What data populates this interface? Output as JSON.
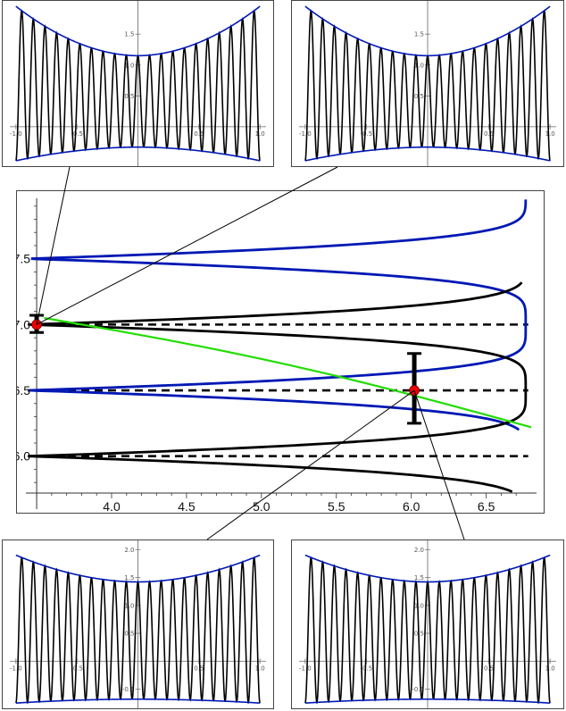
{
  "chart_data": [
    {
      "id": "main",
      "type": "line",
      "x_ticks": [
        "4.0",
        "4.5",
        "5.0",
        "5.5",
        "6.0",
        "6.5"
      ],
      "y_ticks": [
        "6.0",
        "6.5",
        "7.0",
        "7.5"
      ],
      "xlim": [
        3.55,
        6.8
      ],
      "ylim": [
        5.7,
        8.0
      ],
      "y_axis_at_x": 3.5,
      "series_colors": {
        "black": "#000000",
        "blue": "#0018b4",
        "green": "#22dd00",
        "marker": "#ee0000",
        "dashed": "#000000"
      },
      "dashed_levels": [
        6.0,
        6.5,
        7.0
      ],
      "black_curve": {
        "y_start": 5.73,
        "y_end": 7.32,
        "turning_points": [
          6.0,
          7.0
        ]
      },
      "blue_curve": {
        "y_start": 6.2,
        "y_end": 7.95,
        "turning_points": [
          6.5,
          7.5
        ]
      },
      "green_line": {
        "x": [
          3.55,
          6.8
        ],
        "y": [
          7.05,
          6.22
        ]
      },
      "markers": [
        {
          "x": 3.5,
          "y": 7.0
        },
        {
          "x": 6.02,
          "y": 6.5
        }
      ],
      "error_bars": [
        {
          "x": 3.5,
          "low": 6.94,
          "high": 7.07
        },
        {
          "x": 6.02,
          "low": 6.25,
          "high": 6.78
        }
      ]
    },
    {
      "id": "inset-top-left",
      "type": "line",
      "x_ticks": [
        "-1.0",
        "-0.5",
        "0.5",
        "1.0"
      ],
      "y_ticks": [
        "0.5",
        "1.0",
        "1.5"
      ],
      "xlim": [
        -1.05,
        1.05
      ],
      "ylim": [
        -0.58,
        1.98
      ],
      "envelope": {
        "upper_min": 1.15,
        "upper_max": 1.95,
        "lower_max": -0.33,
        "lower_min": -0.55
      },
      "cycles": 10.5,
      "colors": {
        "wave": "#000000",
        "envelope": "#0018b4"
      }
    },
    {
      "id": "inset-top-right",
      "type": "line",
      "x_ticks": [
        "-1.0",
        "-0.5",
        "0.5",
        "1.0"
      ],
      "y_ticks": [
        "0.5",
        "1.0",
        "1.5"
      ],
      "xlim": [
        -1.05,
        1.05
      ],
      "ylim": [
        -0.58,
        1.98
      ],
      "envelope": {
        "upper_min": 1.15,
        "upper_max": 1.95,
        "lower_max": -0.33,
        "lower_min": -0.55
      },
      "cycles": 10.5,
      "colors": {
        "wave": "#000000",
        "envelope": "#0018b4"
      }
    },
    {
      "id": "inset-bottom-left",
      "type": "line",
      "x_ticks": [
        "-1.0",
        "-0.5",
        "0.5",
        "1.0"
      ],
      "y_ticks": [
        "-0.5",
        "0.5",
        "1.0",
        "1.5",
        "2.0"
      ],
      "xlim": [
        -1.05,
        1.05
      ],
      "ylim": [
        -0.78,
        2.1
      ],
      "envelope": {
        "upper_min": 1.42,
        "upper_max": 1.9,
        "lower_max": -0.68,
        "lower_min": -0.75
      },
      "cycles": 10.5,
      "colors": {
        "wave": "#000000",
        "envelope": "#0018b4"
      }
    },
    {
      "id": "inset-bottom-right",
      "type": "line",
      "x_ticks": [
        "-1.0",
        "-0.5",
        "0.5",
        "1.0"
      ],
      "y_ticks": [
        "-0.5",
        "0.5",
        "1.0",
        "1.5",
        "2.0"
      ],
      "xlim": [
        -1.05,
        1.05
      ],
      "ylim": [
        -0.78,
        2.1
      ],
      "envelope": {
        "upper_min": 1.42,
        "upper_max": 1.9,
        "lower_max": -0.68,
        "lower_min": -0.75
      },
      "cycles": 10.5,
      "colors": {
        "wave": "#000000",
        "envelope": "#0018b4"
      }
    }
  ]
}
